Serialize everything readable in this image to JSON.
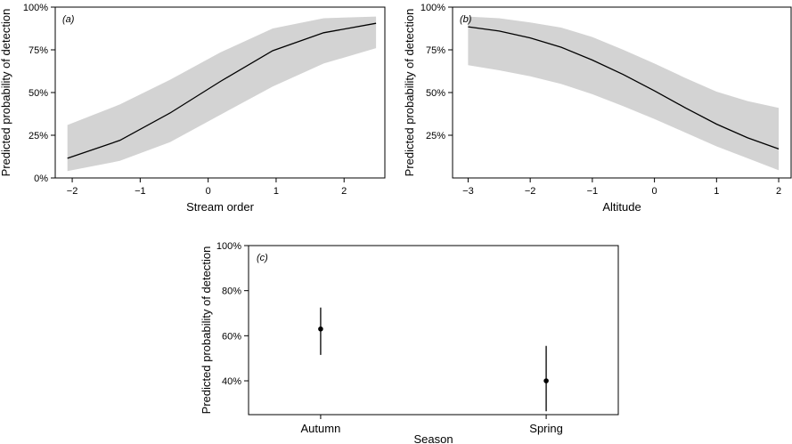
{
  "chart_data": [
    {
      "type": "line",
      "panel_label": "(a)",
      "xlabel": "Stream order",
      "ylabel": "Predicted probability of detection",
      "xlim": [
        -2.25,
        2.6
      ],
      "ylim": [
        0,
        1
      ],
      "xticks": [
        -2,
        -1,
        0,
        1,
        2
      ],
      "xtick_labels": [
        "−2",
        "−1",
        "0",
        "1",
        "2"
      ],
      "yticks": [
        0,
        0.25,
        0.5,
        0.75,
        1
      ],
      "ytick_labels": [
        "0%",
        "25%",
        "50%",
        "75%",
        "100%"
      ],
      "x": [
        -2.07,
        -1.3,
        -0.56,
        0.18,
        0.95,
        1.7,
        2.47
      ],
      "y": [
        0.115,
        0.22,
        0.38,
        0.565,
        0.745,
        0.85,
        0.905
      ],
      "lower": [
        0.04,
        0.1,
        0.21,
        0.37,
        0.535,
        0.67,
        0.76
      ],
      "upper": [
        0.31,
        0.43,
        0.575,
        0.735,
        0.875,
        0.935,
        0.945
      ],
      "band_color": "#d3d3d3",
      "line_color": "#000000",
      "grid": false
    },
    {
      "type": "line",
      "panel_label": "(b)",
      "xlabel": "Altitude",
      "ylabel": "Predicted probability of detection",
      "xlim": [
        -3.25,
        2.2
      ],
      "ylim": [
        0,
        1
      ],
      "xticks": [
        -3,
        -2,
        -1,
        0,
        1,
        2
      ],
      "xtick_labels": [
        "−3",
        "−2",
        "−1",
        "0",
        "1",
        "2"
      ],
      "yticks": [
        0.25,
        0.5,
        0.75,
        1
      ],
      "ytick_labels": [
        "25%",
        "50%",
        "75%",
        "100%"
      ],
      "x": [
        -3.0,
        -2.5,
        -2.0,
        -1.5,
        -1.0,
        -0.5,
        0.0,
        0.5,
        1.0,
        1.5,
        2.0
      ],
      "y": [
        0.885,
        0.86,
        0.82,
        0.765,
        0.69,
        0.605,
        0.51,
        0.41,
        0.315,
        0.235,
        0.17
      ],
      "lower": [
        0.66,
        0.63,
        0.595,
        0.55,
        0.49,
        0.42,
        0.345,
        0.265,
        0.185,
        0.115,
        0.045
      ],
      "upper": [
        0.945,
        0.935,
        0.91,
        0.88,
        0.825,
        0.75,
        0.67,
        0.585,
        0.505,
        0.45,
        0.41
      ],
      "band_color": "#d3d3d3",
      "line_color": "#000000",
      "grid": false
    },
    {
      "type": "scatter",
      "panel_label": "(c)",
      "xlabel": "Season",
      "ylabel": "Predicted probability of detection",
      "categories": [
        "Autumn",
        "Spring"
      ],
      "ylim": [
        0.25,
        1.0
      ],
      "yticks": [
        0.4,
        0.6,
        0.8,
        1.0
      ],
      "ytick_labels": [
        "40%",
        "60%",
        "80%",
        "100%"
      ],
      "values": [
        0.63,
        0.4
      ],
      "lower": [
        0.515,
        0.265
      ],
      "upper": [
        0.725,
        0.555
      ],
      "marker_color": "#000000",
      "grid": false
    }
  ]
}
